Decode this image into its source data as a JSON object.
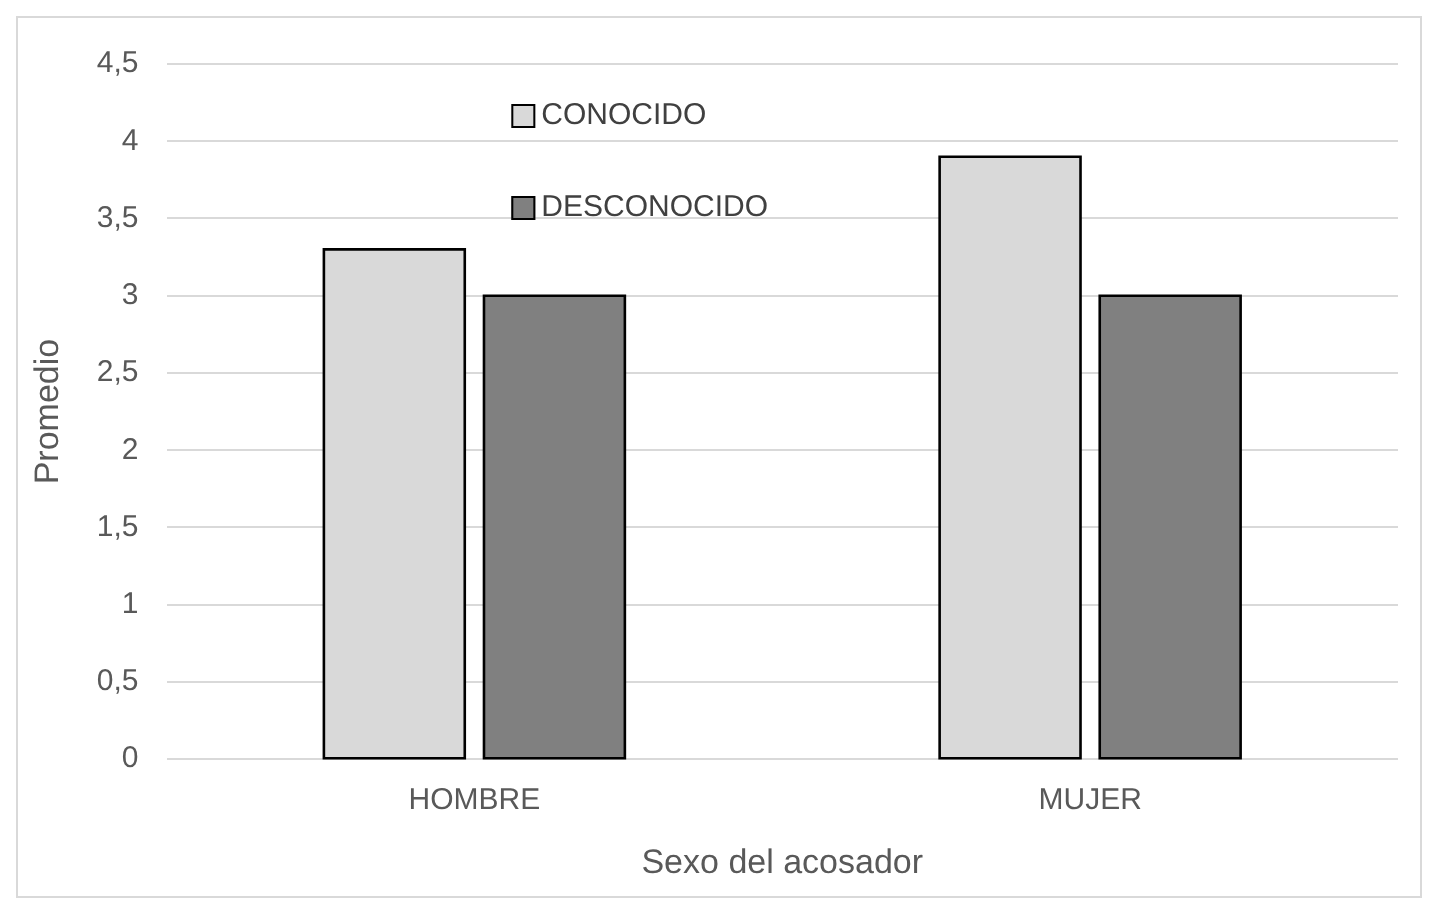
{
  "chart_data": {
    "type": "bar",
    "categories": [
      "HOMBRE",
      "MUJER"
    ],
    "series": [
      {
        "name": "CONOCIDO",
        "color": "#d9d9d9",
        "values": [
          3.3,
          3.9
        ]
      },
      {
        "name": "DESCONOCIDO",
        "color": "#808080",
        "values": [
          3.0,
          3.0
        ]
      }
    ],
    "xlabel": "Sexo del acosador",
    "ylabel": "Promedio",
    "ylim": [
      0,
      4.5
    ],
    "yticks": [
      0,
      {
        "value": 0.5,
        "label": "0,5"
      },
      1,
      {
        "value": 1.5,
        "label": "1,5"
      },
      2,
      {
        "value": 2.5,
        "label": "2,5"
      },
      3,
      {
        "value": 3.5,
        "label": "3,5"
      },
      4,
      {
        "value": 4.5,
        "label": "4,5"
      }
    ],
    "grid": "y",
    "legend": "top left"
  }
}
